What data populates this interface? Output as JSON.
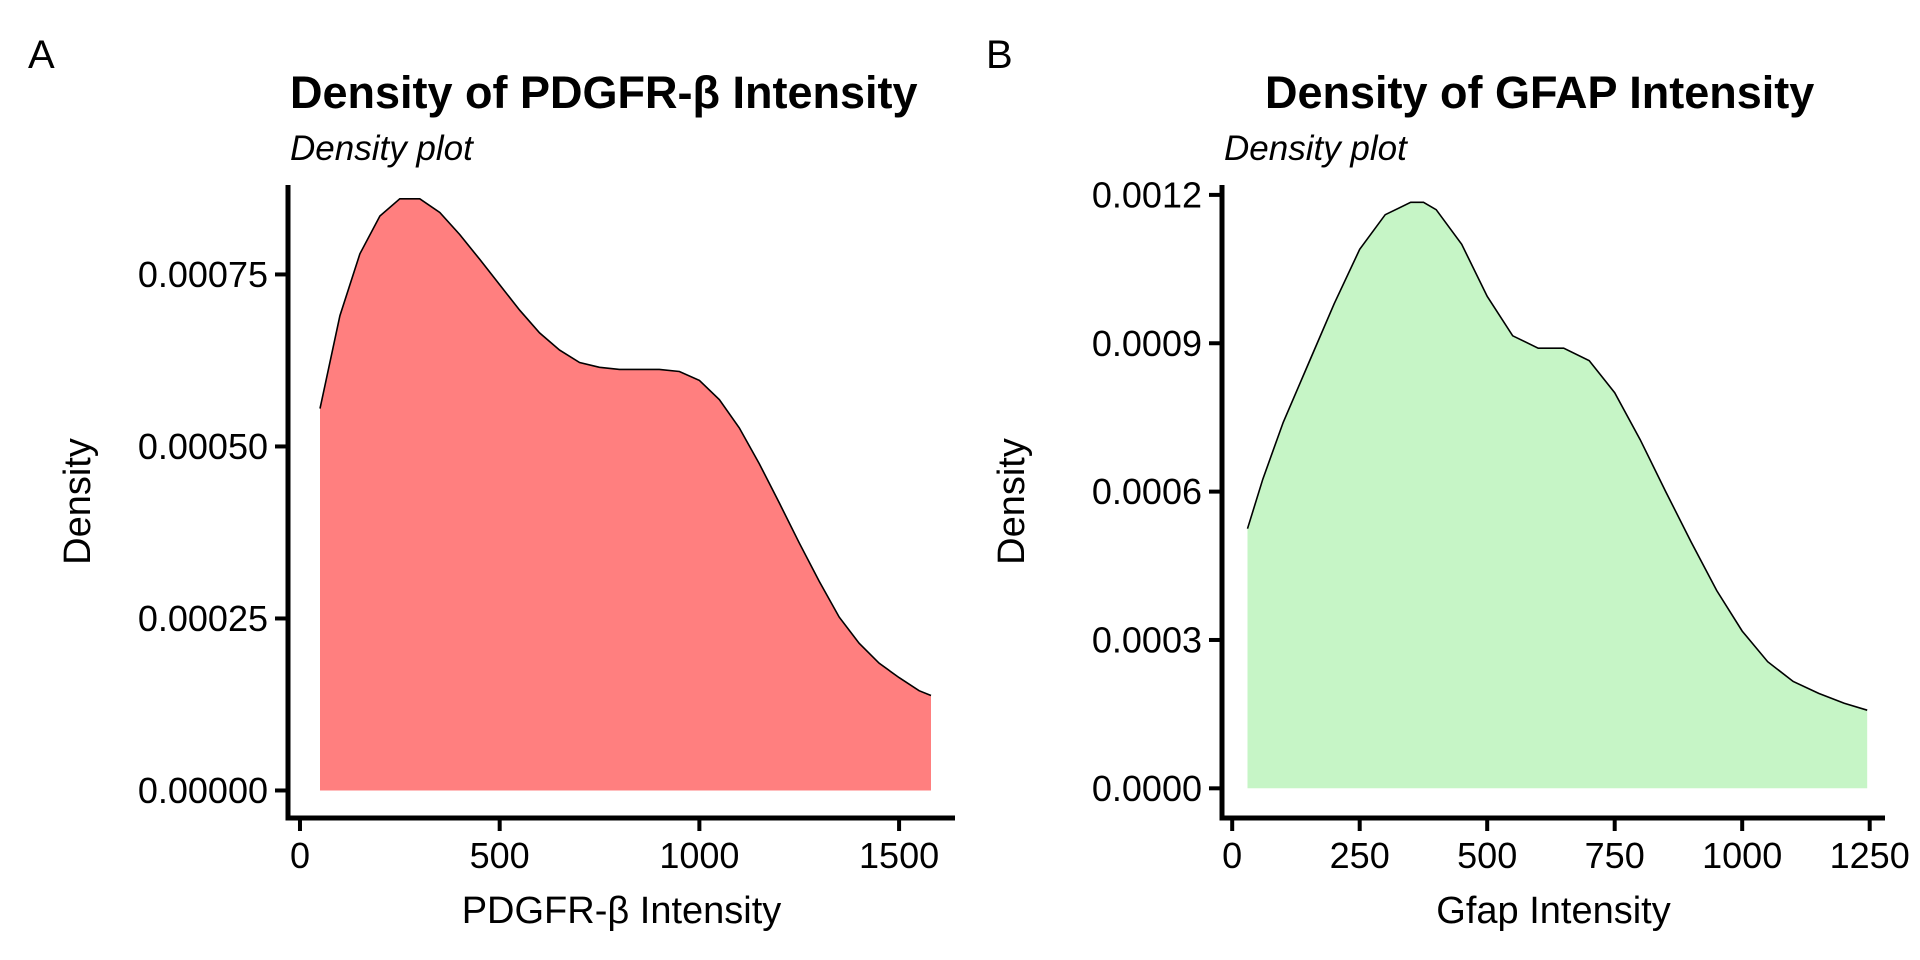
{
  "chart_data": [
    {
      "panel_label": "A",
      "type": "area",
      "title": "Density of PDGFR-β Intensity",
      "subtitle": "Density plot",
      "xlabel": "PDGFR-β Intensity",
      "ylabel": "Density",
      "xlim": [
        -30,
        1640
      ],
      "ylim": [
        -4e-05,
        0.00088
      ],
      "x_ticks": [
        0,
        500,
        1000,
        1500
      ],
      "x_tick_labels": [
        "0",
        "500",
        "1000",
        "1500"
      ],
      "y_ticks": [
        0,
        0.00025,
        0.0005,
        0.00075
      ],
      "y_tick_labels": [
        "0.00000",
        "0.00025",
        "0.00050",
        "0.00075"
      ],
      "fill_color": "#ff7f7f",
      "line_color": "#000000",
      "grid": false,
      "legend": "none",
      "x": [
        50,
        100,
        150,
        200,
        250,
        300,
        350,
        400,
        450,
        500,
        550,
        600,
        650,
        700,
        750,
        800,
        850,
        900,
        950,
        1000,
        1050,
        1100,
        1150,
        1200,
        1250,
        1300,
        1350,
        1400,
        1450,
        1500,
        1550,
        1580
      ],
      "y": [
        0.000555,
        0.00069,
        0.00078,
        0.000835,
        0.00086,
        0.00086,
        0.00084,
        0.000808,
        0.000772,
        0.000735,
        0.000698,
        0.000665,
        0.00064,
        0.000622,
        0.000615,
        0.000612,
        0.000612,
        0.000612,
        0.000609,
        0.000596,
        0.000568,
        0.000527,
        0.000475,
        0.000418,
        0.00036,
        0.000304,
        0.000252,
        0.000214,
        0.000185,
        0.000164,
        0.000145,
        0.000138
      ]
    },
    {
      "panel_label": "B",
      "type": "area",
      "title": "Density of GFAP Intensity",
      "subtitle": "Density plot",
      "xlabel": "Gfap Intensity",
      "ylabel": "Density",
      "xlim": [
        -20,
        1280
      ],
      "ylim": [
        -6e-05,
        0.00122
      ],
      "x_ticks": [
        0,
        250,
        500,
        750,
        1000,
        1250
      ],
      "x_tick_labels": [
        "0",
        "250",
        "500",
        "750",
        "1000",
        "1250"
      ],
      "y_ticks": [
        0,
        0.0003,
        0.0006,
        0.0009,
        0.0012
      ],
      "y_tick_labels": [
        "0.0000",
        "0.0003",
        "0.0006",
        "0.0009",
        "0.0012"
      ],
      "fill_color": "#c6f5c6",
      "line_color": "#000000",
      "grid": false,
      "legend": "none",
      "x": [
        30,
        60,
        100,
        150,
        200,
        250,
        300,
        350,
        375,
        400,
        450,
        500,
        550,
        600,
        650,
        700,
        750,
        800,
        850,
        900,
        950,
        1000,
        1050,
        1100,
        1150,
        1200,
        1245
      ],
      "y": [
        0.000525,
        0.000625,
        0.00074,
        0.00086,
        0.00098,
        0.00109,
        0.00116,
        0.001185,
        0.001185,
        0.00117,
        0.0011,
        0.000995,
        0.000915,
        0.00089,
        0.00089,
        0.000865,
        0.0008,
        0.000705,
        0.0006,
        0.000498,
        0.0004,
        0.000318,
        0.000256,
        0.000216,
        0.000192,
        0.000172,
        0.000158
      ]
    }
  ]
}
